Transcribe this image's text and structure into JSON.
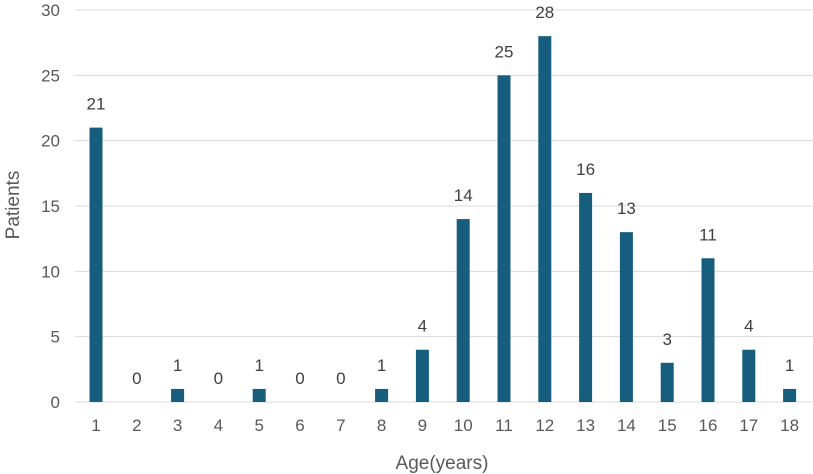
{
  "chart_data": {
    "type": "bar",
    "xlabel": "Age(years)",
    "ylabel": "Patients",
    "categories": [
      "1",
      "2",
      "3",
      "4",
      "5",
      "6",
      "7",
      "8",
      "9",
      "10",
      "11",
      "12",
      "13",
      "14",
      "15",
      "16",
      "17",
      "18"
    ],
    "values": [
      21,
      0,
      1,
      0,
      1,
      0,
      0,
      1,
      4,
      14,
      25,
      28,
      16,
      13,
      3,
      11,
      4,
      1
    ],
    "ylim": [
      0,
      30
    ],
    "yticks": [
      0,
      5,
      10,
      15,
      20,
      25,
      30
    ],
    "grid": true,
    "legend": "none",
    "bar_color": "#175E7E",
    "grid_color": "#D9D9D9"
  }
}
